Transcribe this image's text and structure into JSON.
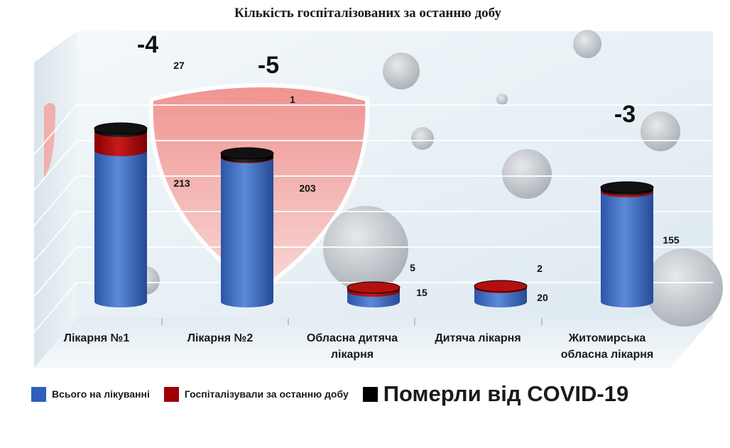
{
  "chart_data": {
    "type": "bar",
    "stacked": true,
    "three_d": true,
    "title": "Кількість госпіталізованих за останню добу",
    "categories": [
      "Лікарня №1",
      "Лікарня №2",
      "Обласна дитяча лікарня",
      "Дитяча лікарня",
      "Житомирська обласна лікарня"
    ],
    "category_lines": [
      [
        "Лікарня №1"
      ],
      [
        "Лікарня №2"
      ],
      [
        "Обласна дитяча",
        "лікарня"
      ],
      [
        "Дитяча лікарня"
      ],
      [
        "Житомирська",
        "обласна лікарня"
      ]
    ],
    "series": [
      {
        "name": "Всього на лікуванні",
        "color": "#4472C4",
        "values": [
          213,
          203,
          15,
          20,
          155
        ]
      },
      {
        "name": "Госпіталізували за останню добу",
        "color": "#C00000",
        "values": [
          27,
          1,
          5,
          2,
          3
        ]
      },
      {
        "name": "Померли від COVID-19",
        "color": "#000000",
        "values": [
          4,
          5,
          0,
          0,
          3
        ]
      }
    ],
    "series_labels": [
      [
        "213",
        "203",
        "15",
        "20",
        "155"
      ],
      [
        "27",
        "1",
        "5",
        "2",
        ""
      ]
    ],
    "death_labels": [
      "-4",
      "-5",
      "",
      "",
      "-3"
    ],
    "ylim": [
      0,
      300
    ],
    "grid": true,
    "legend_position": "bottom",
    "background": "light blue with virus illustrations and red shield"
  },
  "legend": [
    {
      "label": "Всього на лікуванні",
      "color": "#2E5FBF"
    },
    {
      "label": "Госпіталізували за останню добу",
      "color": "#A00000"
    },
    {
      "label": "Померли від COVID-19",
      "color": "#000000"
    }
  ]
}
